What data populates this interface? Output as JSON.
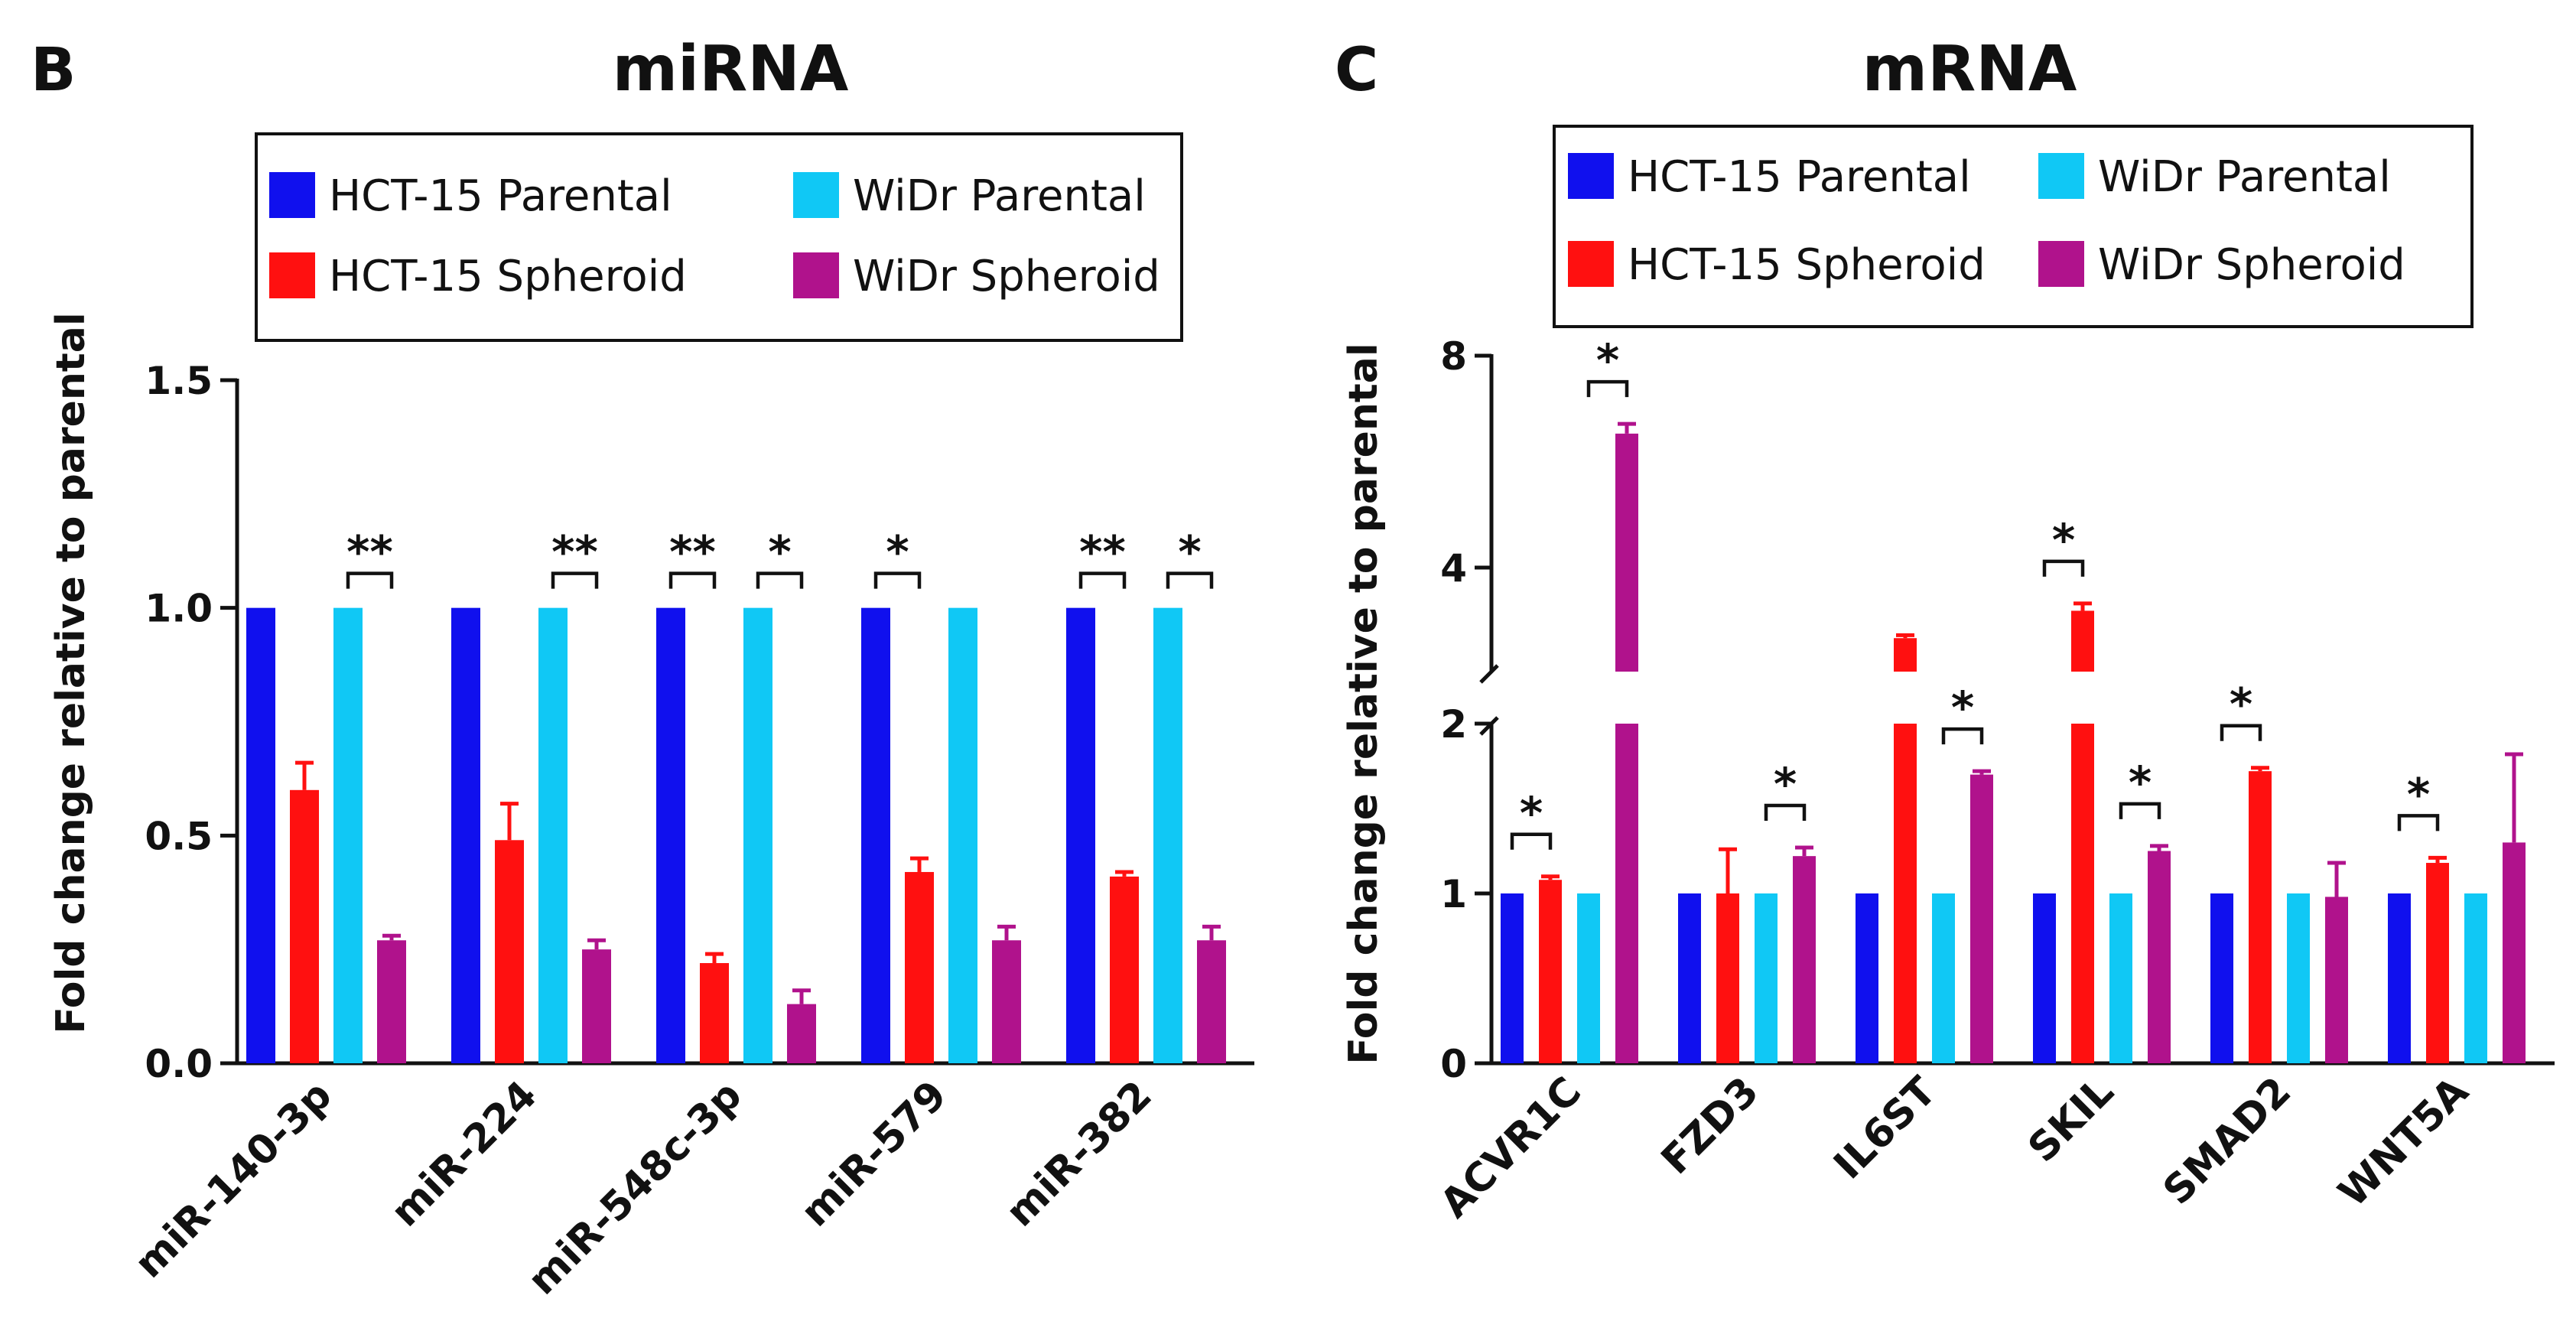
{
  "colors": {
    "hct15_parental": "#1010ee",
    "hct15_spheroid": "#ff1010",
    "widr_parental": "#10c8f5",
    "widr_spheroid": "#b0128c"
  },
  "chart_data": [
    {
      "type": "bar",
      "panel_letter": "B",
      "title": "miRNA",
      "xlabel": "",
      "ylabel": "Fold change relative to parental",
      "ylim": [
        0,
        1.5
      ],
      "yticks": [
        "0.0",
        "0.5",
        "1.0",
        "1.5"
      ],
      "legend": {
        "placement": "top",
        "items": [
          "HCT-15 Parental",
          "WiDr Parental",
          "HCT-15 Spheroid",
          "WiDr Spheroid"
        ]
      },
      "categories": [
        "miR-140-3p",
        "miR-224",
        "miR-548c-3p",
        "miR-579",
        "miR-382"
      ],
      "series": [
        {
          "name": "HCT-15 Parental",
          "color_key": "hct15_parental",
          "values": [
            1,
            1,
            1,
            1,
            1
          ],
          "errors": [
            0,
            0,
            0,
            0,
            0
          ]
        },
        {
          "name": "HCT-15 Spheroid",
          "color_key": "hct15_spheroid",
          "values": [
            0.6,
            0.49,
            0.22,
            0.42,
            0.41
          ],
          "errors": [
            0.06,
            0.08,
            0.02,
            0.03,
            0.01
          ]
        },
        {
          "name": "WiDr Parental",
          "color_key": "widr_parental",
          "values": [
            1,
            1,
            1,
            1,
            1
          ],
          "errors": [
            0,
            0,
            0,
            0,
            0
          ]
        },
        {
          "name": "WiDr Spheroid",
          "color_key": "widr_spheroid",
          "values": [
            0.27,
            0.25,
            0.13,
            0.27,
            0.27
          ],
          "errors": [
            0.01,
            0.02,
            0.03,
            0.03,
            0.03
          ]
        }
      ],
      "significance": [
        {
          "category": 0,
          "pair": "widr",
          "label": "**"
        },
        {
          "category": 1,
          "pair": "widr",
          "label": "**"
        },
        {
          "category": 2,
          "pair": "hct15",
          "label": "**"
        },
        {
          "category": 2,
          "pair": "widr",
          "label": "*"
        },
        {
          "category": 3,
          "pair": "hct15",
          "label": "*"
        },
        {
          "category": 4,
          "pair": "hct15",
          "label": "**"
        },
        {
          "category": 4,
          "pair": "widr",
          "label": "*"
        }
      ]
    },
    {
      "type": "bar",
      "panel_letter": "C",
      "title": "mRNA",
      "xlabel": "",
      "ylabel": "Fold change relative to parental",
      "ylim": [
        0,
        8
      ],
      "axis_break": [
        2,
        3
      ],
      "yticks": [
        "0",
        "1",
        "2",
        "4",
        "8"
      ],
      "legend": {
        "placement": "top",
        "items": [
          "HCT-15 Parental",
          "WiDr Parental",
          "HCT-15 Spheroid",
          "WiDr Spheroid"
        ]
      },
      "categories": [
        "ACVR1C",
        "FZD3",
        "IL6ST",
        "SKIL",
        "SMAD2",
        "WNT5A"
      ],
      "series": [
        {
          "name": "HCT-15 Parental",
          "color_key": "hct15_parental",
          "values": [
            1,
            1,
            1,
            1,
            1,
            1
          ],
          "errors": [
            0,
            0,
            0,
            0,
            0,
            0
          ]
        },
        {
          "name": "HCT-15 Spheroid",
          "color_key": "hct15_spheroid",
          "values": [
            1.08,
            1.0,
            2.5,
            3.0,
            1.72,
            1.18
          ],
          "errors": [
            0.02,
            0.26,
            0.05,
            0.15,
            0.02,
            0.03
          ]
        },
        {
          "name": "WiDr Parental",
          "color_key": "widr_parental",
          "values": [
            1,
            1,
            1,
            1,
            1,
            1
          ],
          "errors": [
            0,
            0,
            0,
            0,
            0,
            0
          ]
        },
        {
          "name": "WiDr Spheroid",
          "color_key": "widr_spheroid",
          "values": [
            6.2,
            1.22,
            1.7,
            1.25,
            0.98,
            1.3
          ],
          "errors": [
            0.2,
            0.05,
            0.02,
            0.03,
            0.2,
            0.52
          ]
        }
      ],
      "significance": [
        {
          "category": 0,
          "pair": "hct15",
          "label": "*"
        },
        {
          "category": 0,
          "pair": "widr",
          "label": "*"
        },
        {
          "category": 1,
          "pair": "widr",
          "label": "*"
        },
        {
          "category": 2,
          "pair": "widr",
          "label": "*"
        },
        {
          "category": 3,
          "pair": "hct15",
          "label": "*"
        },
        {
          "category": 3,
          "pair": "widr",
          "label": "*"
        },
        {
          "category": 4,
          "pair": "hct15",
          "label": "*"
        },
        {
          "category": 5,
          "pair": "hct15",
          "label": "*"
        }
      ]
    }
  ]
}
